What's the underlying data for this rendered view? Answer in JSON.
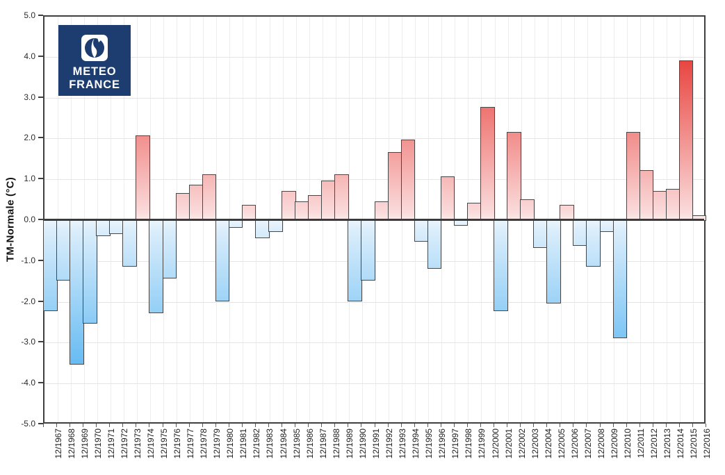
{
  "logo": {
    "line1": "METEO",
    "line2": "FRANCE",
    "bg_color": "#1d3c6f"
  },
  "chart_data": {
    "type": "bar",
    "title": "",
    "xlabel": "",
    "ylabel": "TM-Normale (°C)",
    "ylim": [
      -5,
      5
    ],
    "grid": true,
    "yticks": [
      "5.0",
      "4.0",
      "3.0",
      "2.0",
      "1.0",
      "0.0",
      "-1.0",
      "-2.0",
      "-3.0",
      "-4.0",
      "-5.0"
    ],
    "categories": [
      "12/1967",
      "12/1968",
      "12/1969",
      "12/1970",
      "12/1971",
      "12/1972",
      "12/1973",
      "12/1974",
      "12/1975",
      "12/1976",
      "12/1977",
      "12/1978",
      "12/1979",
      "12/1980",
      "12/1981",
      "12/1982",
      "12/1983",
      "12/1984",
      "12/1985",
      "12/1986",
      "12/1987",
      "12/1988",
      "12/1989",
      "12/1990",
      "12/1991",
      "12/1992",
      "12/1993",
      "12/1994",
      "12/1995",
      "12/1996",
      "12/1997",
      "12/1998",
      "12/1999",
      "12/2000",
      "12/2001",
      "12/2002",
      "12/2003",
      "12/2004",
      "12/2005",
      "12/2006",
      "12/2007",
      "12/2008",
      "12/2009",
      "12/2010",
      "12/2011",
      "12/2012",
      "12/2013",
      "12/2014",
      "12/2015",
      "12/2016"
    ],
    "values": [
      -2.2,
      -1.45,
      -3.5,
      -2.5,
      -0.35,
      -0.3,
      -1.1,
      2.05,
      -2.25,
      -1.4,
      0.65,
      0.85,
      1.1,
      -1.95,
      -0.15,
      0.35,
      -0.4,
      -0.25,
      0.7,
      0.45,
      0.6,
      0.95,
      1.1,
      -1.95,
      -1.45,
      0.45,
      1.65,
      1.95,
      -0.5,
      -1.15,
      1.05,
      -0.1,
      0.4,
      2.75,
      -2.2,
      2.15,
      0.5,
      -0.65,
      -2.0,
      0.35,
      -0.6,
      -1.1,
      -0.25,
      -2.85,
      2.15,
      1.2,
      0.7,
      0.75,
      3.9,
      0.1
    ],
    "positive_color": "#e8423d",
    "positive_pale": "#fadada",
    "negative_color": "#55b4f2",
    "negative_pale": "#dceefb",
    "zero_line_color": "#3a3a3a",
    "frame_color": "#3f3f3f"
  }
}
